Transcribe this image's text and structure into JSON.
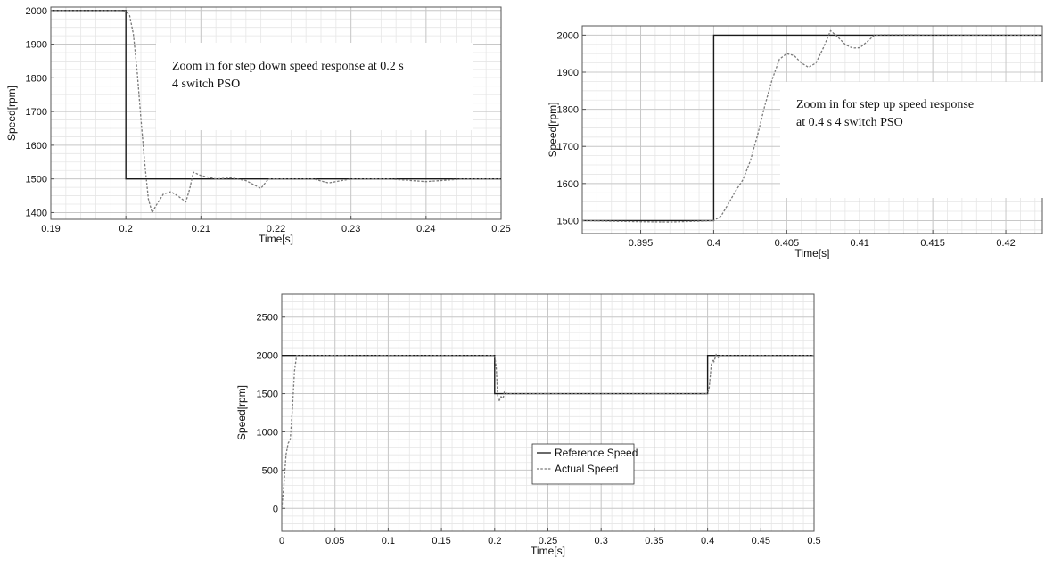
{
  "colors": {
    "reference_line": "#1a1a1a",
    "actual_line": "#7a7a7a",
    "major_grid": "#c8c8c8",
    "minor_grid": "#e6e6e6",
    "axis": "#555555"
  },
  "chart_data": [
    {
      "type": "line",
      "panel": "top-left",
      "xlabel": "Time[s]",
      "ylabel": "Speed[rpm]",
      "xlim": [
        0.19,
        0.25
      ],
      "ylim": [
        1380,
        2010
      ],
      "xticks": [
        0.19,
        0.2,
        0.21,
        0.22,
        0.23,
        0.24,
        0.25
      ],
      "xtick_labels": [
        "0.19",
        "0.2",
        "0.21",
        "0.22",
        "0.23",
        "0.24",
        "0.25"
      ],
      "yticks": [
        1400,
        1500,
        1600,
        1700,
        1800,
        1900,
        2000
      ],
      "ytick_labels": [
        "1400",
        "1500",
        "1600",
        "1700",
        "1800",
        "1900",
        "2000"
      ],
      "grid": true,
      "annotation": [
        "Zoom in for step down speed response at 0.2 s",
        "4 switch PSO"
      ],
      "series": [
        {
          "style": "solid",
          "x": [
            0.19,
            0.2,
            0.2,
            0.25
          ],
          "y": [
            2000,
            2000,
            1500,
            1500
          ]
        },
        {
          "style": "dotted",
          "x": [
            0.19,
            0.199,
            0.2,
            0.2005,
            0.201,
            0.2015,
            0.202,
            0.2025,
            0.203,
            0.2035,
            0.204,
            0.205,
            0.206,
            0.207,
            0.208,
            0.2085,
            0.209,
            0.21,
            0.212,
            0.214,
            0.216,
            0.218,
            0.219,
            0.222,
            0.225,
            0.227,
            0.23,
            0.235,
            0.24,
            0.245,
            0.25
          ],
          "y": [
            2000,
            2000,
            1998,
            1985,
            1930,
            1820,
            1680,
            1550,
            1440,
            1400,
            1420,
            1455,
            1462,
            1448,
            1432,
            1470,
            1520,
            1510,
            1500,
            1503,
            1495,
            1472,
            1500,
            1500,
            1500,
            1488,
            1500,
            1500,
            1492,
            1500,
            1500
          ]
        }
      ]
    },
    {
      "type": "line",
      "panel": "top-right",
      "xlabel": "Time[s]",
      "ylabel": "Speed[rpm]",
      "xlim": [
        0.391,
        0.4225
      ],
      "ylim": [
        1465,
        2025
      ],
      "xticks": [
        0.395,
        0.4,
        0.405,
        0.41,
        0.415,
        0.42
      ],
      "xtick_labels": [
        "0.395",
        "0.4",
        "0.405",
        "0.41",
        "0.415",
        "0.42"
      ],
      "yticks": [
        1500,
        1600,
        1700,
        1800,
        1900,
        2000
      ],
      "ytick_labels": [
        "1500",
        "1600",
        "1700",
        "1800",
        "1900",
        "2000"
      ],
      "grid": true,
      "annotation": [
        "Zoom in for step up speed response",
        "at 0.4 s  4 switch PSO"
      ],
      "series": [
        {
          "style": "solid",
          "x": [
            0.391,
            0.4,
            0.4,
            0.4225
          ],
          "y": [
            1500,
            1500,
            2000,
            2000
          ]
        },
        {
          "style": "dotted",
          "x": [
            0.391,
            0.395,
            0.397,
            0.4,
            0.4005,
            0.401,
            0.4015,
            0.402,
            0.4025,
            0.403,
            0.4035,
            0.404,
            0.4045,
            0.405,
            0.4055,
            0.406,
            0.4065,
            0.407,
            0.4075,
            0.408,
            0.4085,
            0.409,
            0.4095,
            0.41,
            0.4105,
            0.411,
            0.4115,
            0.4225
          ],
          "y": [
            1500,
            1497,
            1496,
            1500,
            1512,
            1545,
            1580,
            1610,
            1660,
            1730,
            1810,
            1880,
            1935,
            1950,
            1945,
            1925,
            1913,
            1925,
            1965,
            2012,
            1995,
            1975,
            1965,
            1966,
            1982,
            2000,
            2001,
            2000
          ]
        }
      ]
    },
    {
      "type": "line",
      "panel": "bottom",
      "xlabel": "Time[s]",
      "ylabel": "Speed[rpm]",
      "xlim": [
        0,
        0.5
      ],
      "ylim": [
        -300,
        2800
      ],
      "xticks": [
        0,
        0.05,
        0.1,
        0.15,
        0.2,
        0.25,
        0.3,
        0.35,
        0.4,
        0.45,
        0.5
      ],
      "xtick_labels": [
        "0",
        "0.05",
        "0.1",
        "0.15",
        "0.2",
        "0.25",
        "0.3",
        "0.35",
        "0.4",
        "0.45",
        "0.5"
      ],
      "yticks": [
        0,
        500,
        1000,
        1500,
        2000,
        2500
      ],
      "ytick_labels": [
        "0",
        "500",
        "1000",
        "1500",
        "2000",
        "2500"
      ],
      "grid": true,
      "legend": {
        "position": "center",
        "entries": [
          "Reference Speed",
          "Actual Speed"
        ]
      },
      "series": [
        {
          "name": "Reference Speed",
          "style": "solid",
          "x": [
            0,
            0,
            0.2,
            0.2,
            0.4,
            0.4,
            0.5
          ],
          "y": [
            2000,
            2000,
            2000,
            1500,
            1500,
            2000,
            2000
          ]
        },
        {
          "name": "Actual Speed",
          "style": "dotted",
          "x": [
            0,
            0.002,
            0.004,
            0.006,
            0.008,
            0.01,
            0.012,
            0.014,
            0.016,
            0.2,
            0.2015,
            0.2025,
            0.203,
            0.204,
            0.206,
            0.208,
            0.209,
            0.212,
            0.22,
            0.4,
            0.4015,
            0.4025,
            0.4035,
            0.405,
            0.406,
            0.408,
            0.41,
            0.412,
            0.5
          ],
          "y": [
            0,
            300,
            700,
            850,
            900,
            1300,
            1800,
            2000,
            2000,
            2000,
            1830,
            1550,
            1440,
            1400,
            1460,
            1440,
            1520,
            1500,
            1500,
            1500,
            1580,
            1730,
            1880,
            1950,
            1920,
            2010,
            1970,
            2000,
            2000
          ]
        }
      ]
    }
  ]
}
